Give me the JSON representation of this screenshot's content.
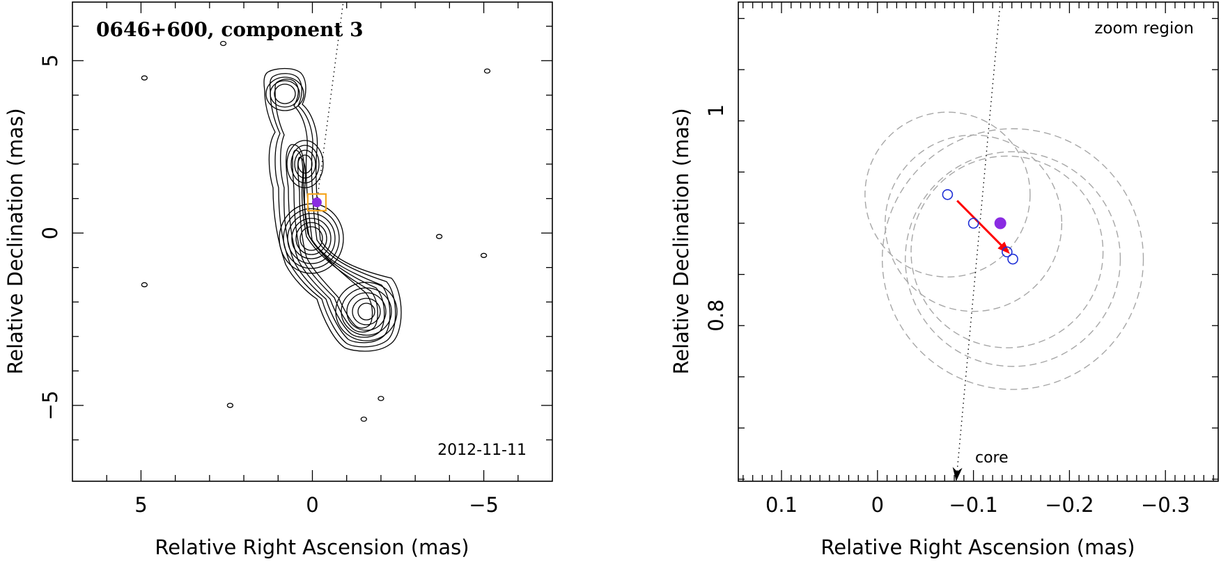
{
  "chart_data": [
    {
      "type": "contour",
      "title": "0646+600, component 3",
      "date_label": "2012-11-11",
      "xlabel": "Relative Right Ascension (mas)",
      "ylabel": "Relative Declination (mas)",
      "xlim": [
        7,
        -7
      ],
      "ylim": [
        -7.2,
        6.7
      ],
      "xticks": [
        5,
        0,
        -5
      ],
      "xtick_labels": [
        "5",
        "0",
        "−5"
      ],
      "yticks": [
        5,
        0,
        -5
      ],
      "ytick_labels": [
        "5",
        "0",
        "−5"
      ],
      "component_marker": {
        "x": -0.13,
        "y": 0.89,
        "fill": "#8a2be2",
        "box_color": "#f5a623"
      },
      "jet_axis_dotted": {
        "from": [
          -0.13,
          0.89
        ],
        "to": [
          -0.9,
          6.7
        ]
      },
      "peaks": [
        {
          "x": 0.6,
          "y": 4.1
        },
        {
          "x": 0.0,
          "y": 2.0
        },
        {
          "x": -0.2,
          "y": -0.2
        },
        {
          "x": -1.8,
          "y": -2.3
        }
      ],
      "noise_islands": [
        {
          "x": 2.6,
          "y": 5.5
        },
        {
          "x": 4.9,
          "y": 4.5
        },
        {
          "x": -5.1,
          "y": 4.7
        },
        {
          "x": -3.7,
          "y": -0.1
        },
        {
          "x": -5.0,
          "y": -0.65
        },
        {
          "x": 4.9,
          "y": -1.5
        },
        {
          "x": 2.4,
          "y": -5.0
        },
        {
          "x": -2.0,
          "y": -4.8
        },
        {
          "x": -1.5,
          "y": -5.4
        }
      ]
    },
    {
      "type": "scatter",
      "zoom_label": "zoom region",
      "core_label": "core",
      "xlabel": "Relative Right Ascension (mas)",
      "ylabel": "Relative Declination (mas)",
      "xlim": [
        0.145,
        -0.355
      ],
      "ylim": [
        0.638,
        1.106
      ],
      "xticks": [
        0.1,
        0,
        -0.1,
        -0.2,
        -0.3
      ],
      "xtick_labels": [
        "0.1",
        "0",
        "−0.1",
        "−0.2",
        "−0.3"
      ],
      "yticks": [
        1.0,
        0.8
      ],
      "ytick_labels": [
        "1",
        "0.8"
      ],
      "epochs_open": [
        {
          "x": -0.073,
          "y": 0.918
        },
        {
          "x": -0.1,
          "y": 0.89
        },
        {
          "x": -0.135,
          "y": 0.862
        },
        {
          "x": -0.141,
          "y": 0.855
        }
      ],
      "component_filled": {
        "x": -0.128,
        "y": 0.89
      },
      "error_circles": [
        {
          "x": -0.073,
          "y": 0.918,
          "r": 0.086
        },
        {
          "x": -0.1,
          "y": 0.89,
          "r": 0.092
        },
        {
          "x": -0.135,
          "y": 0.862,
          "r": 0.1
        },
        {
          "x": -0.141,
          "y": 0.855,
          "r": 0.112
        },
        {
          "x": -0.141,
          "y": 0.855,
          "r": 0.136
        }
      ],
      "motion_arrow": {
        "from": [
          -0.083,
          0.912
        ],
        "to": [
          -0.138,
          0.86
        ],
        "color": "#ff0000"
      },
      "core_direction_dotted": {
        "from": [
          -0.128,
          1.106
        ],
        "to": [
          -0.082,
          0.638
        ]
      },
      "colors": {
        "open_marker": "#1f2fd6",
        "filled_marker": "#8a2be2",
        "circle": "#a6a6a6"
      }
    }
  ]
}
